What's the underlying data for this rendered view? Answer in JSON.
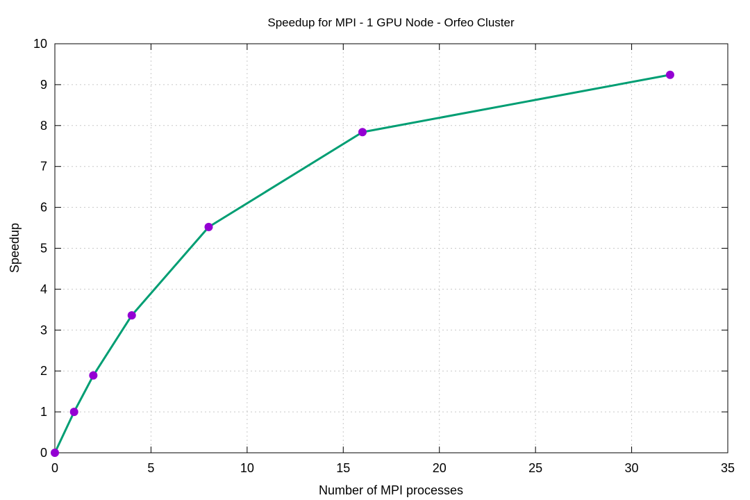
{
  "chart_data": {
    "type": "line",
    "title": "Speedup for MPI - 1 GPU Node - Orfeo Cluster",
    "xlabel": "Number of MPI processes",
    "ylabel": "Speedup",
    "xlim": [
      0,
      35
    ],
    "ylim": [
      0,
      10
    ],
    "x_ticks": [
      0,
      5,
      10,
      15,
      20,
      25,
      30,
      35
    ],
    "y_ticks": [
      0,
      1,
      2,
      3,
      4,
      5,
      6,
      7,
      8,
      9,
      10
    ],
    "grid": true,
    "series": [
      {
        "x": [
          0,
          1,
          2,
          4,
          8,
          16,
          32
        ],
        "values": [
          0,
          1.0,
          1.89,
          3.36,
          5.52,
          7.84,
          9.24
        ],
        "line_color": "#009E73",
        "marker_color": "#9400D3"
      }
    ]
  }
}
